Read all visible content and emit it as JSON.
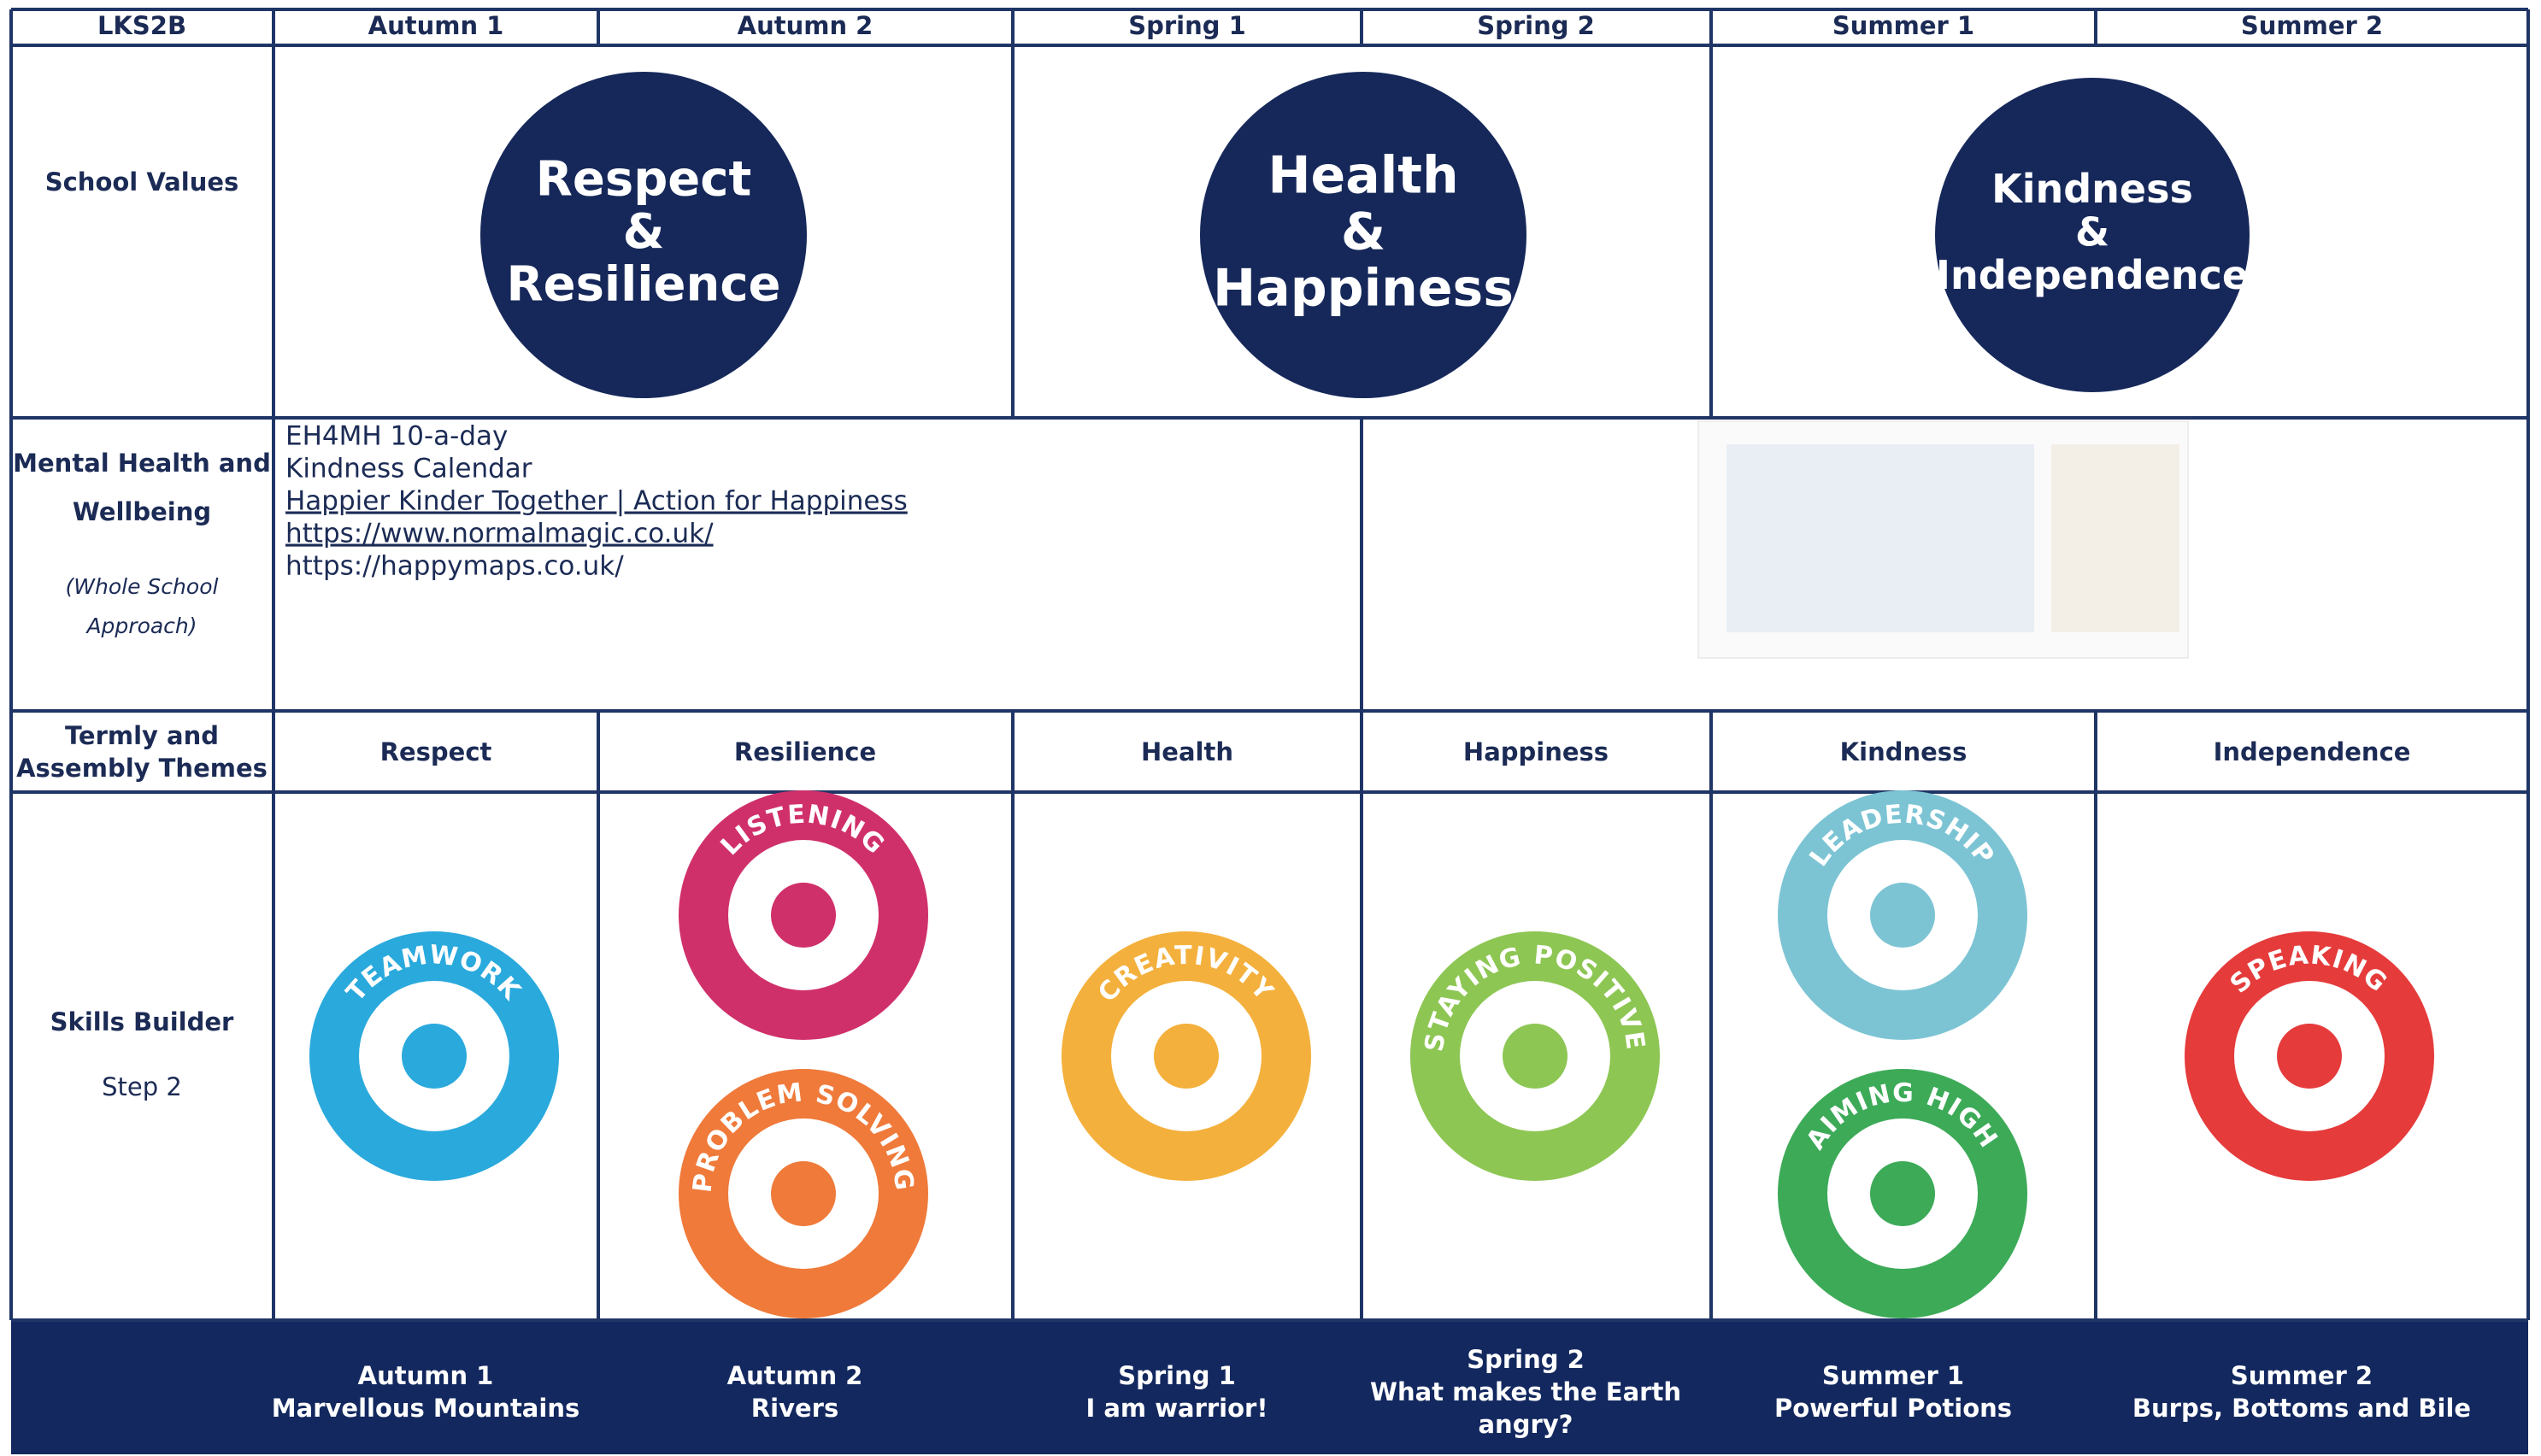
{
  "header": {
    "corner": "LKS2B",
    "terms": [
      "Autumn 1",
      "Autumn 2",
      "Spring 1",
      "Spring 2",
      "Summer 1",
      "Summer 2"
    ]
  },
  "row_labels": {
    "school_values": "School Values",
    "mental_health": [
      "Mental Health and",
      "Wellbeing"
    ],
    "mental_health_note": [
      "(Whole School",
      "Approach)"
    ],
    "themes": [
      "Termly and",
      "Assembly Themes"
    ],
    "skills": "Skills Builder",
    "skills_step": "Step 2"
  },
  "school_values": [
    {
      "lines": [
        "Respect",
        "&",
        "Resilience"
      ]
    },
    {
      "lines": [
        "Health",
        "&",
        "Happiness"
      ]
    },
    {
      "lines": [
        "Kindness",
        "&",
        "Independence"
      ]
    }
  ],
  "mental_health": {
    "lines": [
      "EH4MH 10-a-day",
      "Kindness Calendar"
    ],
    "links": [
      "Happier Kinder Together | Action for Happiness",
      "https://www.normalmagic.co.uk/"
    ],
    "after": [
      "https://happymaps.co.uk/"
    ]
  },
  "themes": [
    "Respect",
    "Resilience",
    "Health",
    "Happiness",
    "Kindness",
    "Independence"
  ],
  "skills": [
    {
      "label": "TEAMWORK",
      "color": "#2aa9dc"
    },
    {
      "label": "LISTENING",
      "color": "#d0306a"
    },
    {
      "label": "PROBLEM SOLVING",
      "color": "#ef7a3a"
    },
    {
      "label": "CREATIVITY",
      "color": "#f4b03c"
    },
    {
      "label": "STAYING POSITIVE",
      "color": "#8dc653"
    },
    {
      "label": "LEADERSHIP",
      "color": "#7cc4d4"
    },
    {
      "label": "AIMING HIGH",
      "color": "#3daa58"
    },
    {
      "label": "SPEAKING",
      "color": "#e53b3b"
    }
  ],
  "topics": [
    {
      "term": "Autumn 1",
      "title": [
        "Marvellous Mountains"
      ]
    },
    {
      "term": "Autumn 2",
      "title": [
        "Rivers"
      ]
    },
    {
      "term": "Spring 1",
      "title": [
        "I am warrior!"
      ]
    },
    {
      "term": "Spring 2",
      "title": [
        "What makes the Earth",
        "angry?"
      ]
    },
    {
      "term": "Summer 1",
      "title": [
        "Powerful Potions"
      ]
    },
    {
      "term": "Summer 2",
      "title": [
        "Burps, Bottoms and Bile"
      ]
    }
  ]
}
